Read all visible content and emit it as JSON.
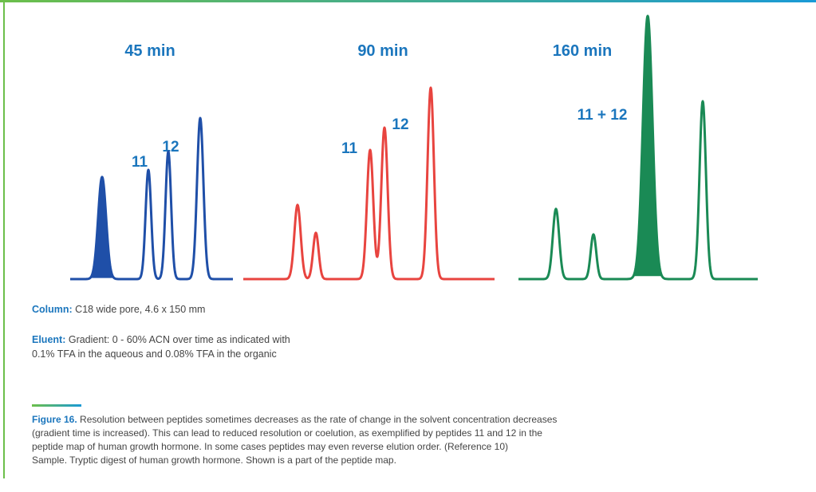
{
  "panels": [
    {
      "title": "45 min",
      "labels": [
        "11",
        "12"
      ]
    },
    {
      "title": "90 min",
      "labels": [
        "11",
        "12"
      ]
    },
    {
      "title": "160 min",
      "labels": [
        "11 + 12"
      ]
    }
  ],
  "conditions": [
    {
      "label": "Column:",
      "lines": [
        "C18  wide pore, 4.6 x 150 mm"
      ]
    },
    {
      "label": "Eluent:",
      "lines": [
        "Gradient: 0 - 60% ACN over time as indicated with",
        "0.1% TFA in the aqueous and 0.08% TFA in the organic"
      ]
    }
  ],
  "caption": {
    "label": "Figure 16.",
    "lines": [
      "Resolution between peptides sometimes decreases as the rate of change in the solvent concentration decreases",
      "(gradient time is increased). This can lead to reduced resolution or coelution, as exemplified by peptides 11 and 12 in the",
      "peptide map of human growth hormone. In some cases peptides may even reverse elution order. (Reference 10)",
      "Sample. Tryptic digest of human growth hormone. Shown is a part of the peptide map."
    ]
  }
}
